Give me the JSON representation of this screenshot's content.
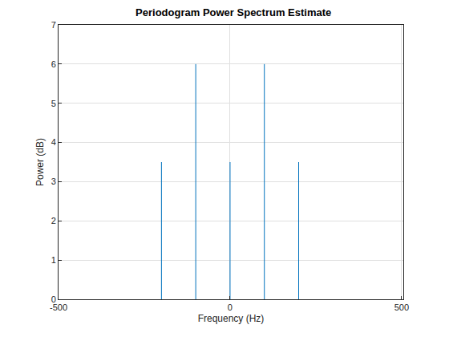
{
  "chart_data": {
    "type": "stem",
    "title": "Periodogram Power Spectrum Estimate",
    "x_label": "Frequency (Hz)",
    "y_label": "Power (dB)",
    "x": [
      -200,
      -100,
      0,
      100,
      200
    ],
    "values": [
      3.5,
      6.0,
      3.5,
      6.0,
      3.5
    ],
    "color": "#0072bd",
    "xlim": [
      -500,
      505
    ],
    "xticks": [
      -500,
      0,
      500
    ],
    "ylim": [
      0,
      7
    ],
    "yticks": [
      0,
      1,
      2,
      3,
      4,
      5,
      6,
      7
    ],
    "grid": true
  }
}
